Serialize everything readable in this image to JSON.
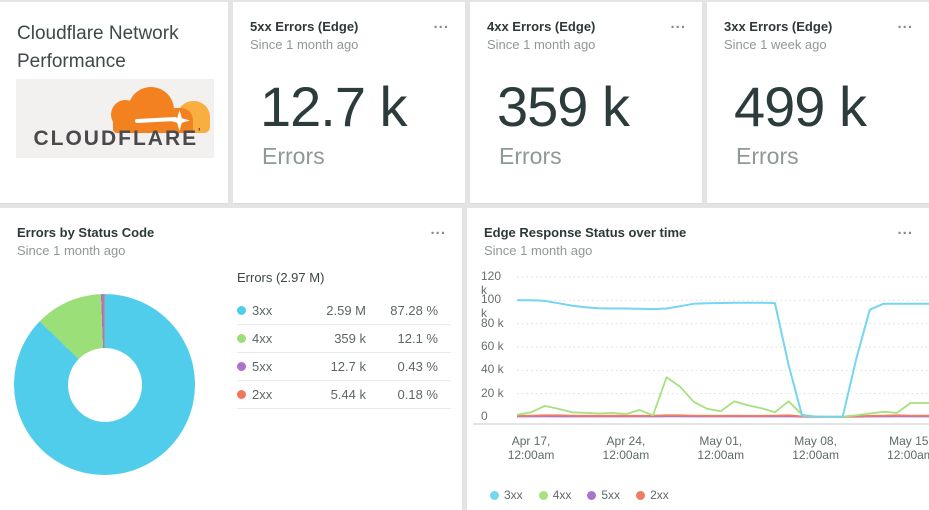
{
  "title_card": {
    "title": "Cloudflare Network Performance",
    "logo_text": "CLOUDFLARE",
    "logo_mark": "'",
    "logo_colors": {
      "cloud": "#f48120",
      "cloud_light": "#f9ae41",
      "word": "#4a4a4c"
    }
  },
  "menu_icon": "...",
  "stat_cards": [
    {
      "title": "5xx Errors (Edge)",
      "subtitle": "Since 1 month ago",
      "value": "12.7 k",
      "unit": "Errors"
    },
    {
      "title": "4xx Errors (Edge)",
      "subtitle": "Since 1 month ago",
      "value": "359 k",
      "unit": "Errors"
    },
    {
      "title": "3xx Errors (Edge)",
      "subtitle": "Since 1 week ago",
      "value": "499 k",
      "unit": "Errors"
    }
  ],
  "donut_card": {
    "title": "Errors by Status Code",
    "subtitle": "Since 1 month ago"
  },
  "timeseries_card": {
    "title": "Edge Response Status over time",
    "subtitle": "Since 1 month ago"
  },
  "chart_data": [
    {
      "type": "pie",
      "title": "Errors by Status Code",
      "total_label": "Errors (2.97 M)",
      "donut_hole_ratio": 0.41,
      "legend_position": "right",
      "slices": [
        {
          "label": "3xx",
          "value": "2.59 M",
          "percent": 87.28,
          "percent_label": "87.28 %",
          "color": "#50cdea"
        },
        {
          "label": "4xx",
          "value": "359 k",
          "percent": 12.1,
          "percent_label": "12.1 %",
          "color": "#9bdf79"
        },
        {
          "label": "5xx",
          "value": "12.7 k",
          "percent": 0.43,
          "percent_label": "0.43 %",
          "color": "#ab73c9"
        },
        {
          "label": "2xx",
          "value": "5.44 k",
          "percent": 0.18,
          "percent_label": "0.18 %",
          "color": "#f1745c"
        }
      ]
    },
    {
      "type": "line",
      "title": "Edge Response Status over time",
      "ylabel": "",
      "xlabel": "",
      "y_unit": "k",
      "y_max_k": 120,
      "y_ticks": [
        "120 k",
        "100 k",
        "80 k",
        "60 k",
        "40 k",
        "20 k",
        "0"
      ],
      "grid": "horizontal dashed",
      "legend_position": "bottom",
      "x_start": "Apr 16, 12:00am",
      "x_tick_indices": [
        1,
        8,
        15,
        22,
        29
      ],
      "x_tick_labels": [
        "Apr 17,\n12:00am",
        "Apr 24,\n12:00am",
        "May 01,\n12:00am",
        "May 08,\n12:00am",
        "May 15,\n12:00am"
      ],
      "series": [
        {
          "name": "3xx",
          "color": "#74d6f0",
          "values_k": [
            100,
            100,
            99.5,
            97.5,
            95.5,
            94,
            93.2,
            93,
            93,
            92.7,
            92.5,
            93,
            95,
            97,
            97.5,
            97.7,
            98,
            98,
            98,
            97.7,
            45,
            1,
            0.4,
            0.3,
            0.3,
            50,
            92,
            97,
            97,
            97
          ]
        },
        {
          "name": "4xx",
          "color": "#a5e17e",
          "values_k": [
            2,
            4,
            9.5,
            7,
            4,
            3.5,
            3,
            3.5,
            2.5,
            6,
            1.5,
            34,
            26,
            13,
            7,
            5,
            13.5,
            10,
            7.5,
            4,
            13.5,
            2,
            0.3,
            0.2,
            0.3,
            1.5,
            3,
            4.5,
            3.5,
            12
          ]
        },
        {
          "name": "5xx",
          "color": "#ab73c9",
          "values_k": [
            0.4,
            0.4,
            0.5,
            0.4,
            0.4,
            0.4,
            0.4,
            0.4,
            0.4,
            0.4,
            0.4,
            0.5,
            0.5,
            0.4,
            0.4,
            0.4,
            0.4,
            0.4,
            0.4,
            0.4,
            0.5,
            0.3,
            0.1,
            0.1,
            0.1,
            0.3,
            0.4,
            0.4,
            0.5,
            0.4
          ]
        },
        {
          "name": "2xx",
          "color": "#ee7d64",
          "values_k": [
            1,
            1.2,
            1.5,
            1.5,
            1.2,
            1,
            1,
            1.2,
            1,
            1,
            1.2,
            1.5,
            1.5,
            1.2,
            1,
            1,
            1.2,
            1,
            1,
            1.2,
            1.5,
            0.5,
            0.2,
            0.2,
            0.2,
            0.5,
            1,
            1.2,
            1.5,
            1.2
          ]
        }
      ]
    }
  ]
}
